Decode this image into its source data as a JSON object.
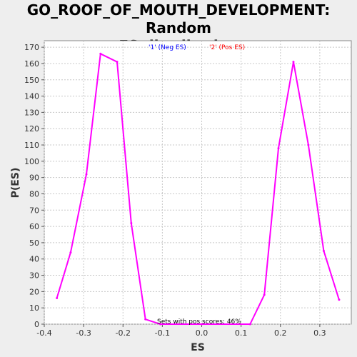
{
  "chart_data": {
    "type": "line",
    "title": "GO_ROOF_OF_MOUTH_DEVELOPMENT: Random ES distribution",
    "title_lines": [
      "GO_ROOF_OF_MOUTH_DEVELOPMENT: Random",
      "ES distribution"
    ],
    "xlabel": "ES",
    "ylabel": "P(ES)",
    "xlim": [
      -0.4,
      0.38
    ],
    "ylim": [
      0,
      174
    ],
    "xticks": [
      -0.4,
      -0.3,
      -0.2,
      -0.1,
      0.0,
      0.1,
      0.2,
      0.3
    ],
    "xtick_labels": [
      "-0.4",
      "-0.3",
      "-0.2",
      "-0.1",
      "0.0",
      "0.1",
      "0.2",
      "0.3"
    ],
    "yticks": [
      0,
      10,
      20,
      30,
      40,
      50,
      60,
      70,
      80,
      90,
      100,
      110,
      120,
      130,
      140,
      150,
      160,
      170
    ],
    "grid": true,
    "legend": [
      {
        "label": "'1' (Neg ES)",
        "color": "#0000ff"
      },
      {
        "label": "'2' (Pos ES)",
        "color": "#ff0000"
      }
    ],
    "legend_placement": "top-center",
    "annotation": "Sets with pos scores: 46%",
    "series": [
      {
        "color": "#ff00ff",
        "points": [
          [
            -0.368,
            16
          ],
          [
            -0.333,
            44
          ],
          [
            -0.293,
            92
          ],
          [
            -0.257,
            166
          ],
          [
            -0.215,
            161
          ],
          [
            -0.179,
            62
          ],
          [
            -0.143,
            3
          ],
          [
            -0.105,
            0
          ],
          [
            0.0,
            0
          ],
          [
            0.123,
            0
          ],
          [
            0.159,
            18
          ],
          [
            0.195,
            108
          ],
          [
            0.233,
            161
          ],
          [
            0.271,
            110
          ],
          [
            0.31,
            45
          ],
          [
            0.349,
            15
          ]
        ]
      }
    ]
  }
}
